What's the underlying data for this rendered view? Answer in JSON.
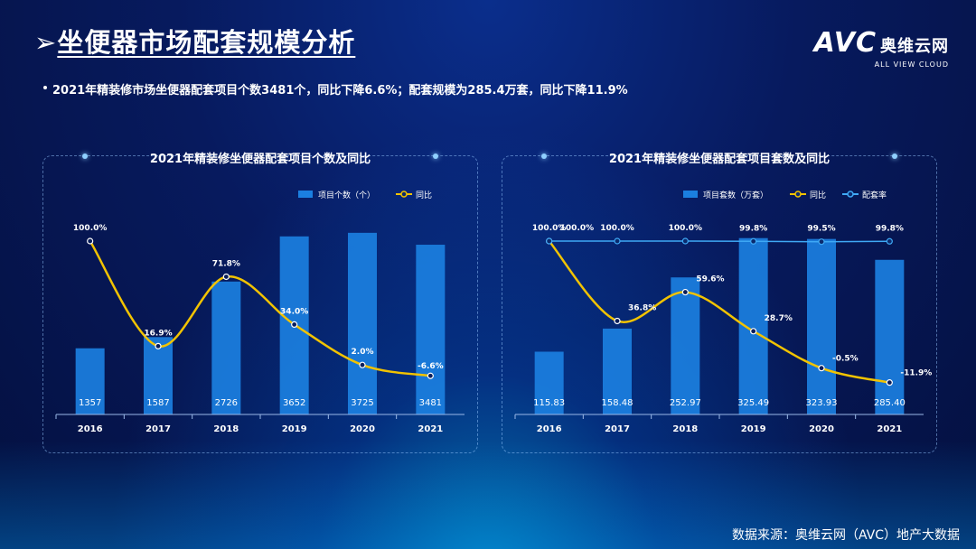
{
  "header": {
    "title": "坐便器市场配套规模分析",
    "title_marker": "➢"
  },
  "brand": {
    "logo_text": "AVC",
    "logo_cn": "奥维云网",
    "tagline": "ALL VIEW CLOUD"
  },
  "summary": "2021年精装修市场坐便器配套项目个数3481个，同比下降6.6%；配套规模为285.4万套，同比下降11.9%",
  "source": "数据来源：奥维云网（AVC）地产大数据",
  "colors": {
    "bar": "#1b7fe0",
    "yoy_line": "#f2c300",
    "rate_line": "#3fa9f5",
    "background": "#071a5e"
  },
  "chart_data": [
    {
      "type": "bar",
      "title": "2021年精装修坐便器配套项目个数及同比",
      "categories": [
        "2016",
        "2017",
        "2018",
        "2019",
        "2020",
        "2021"
      ],
      "series": [
        {
          "name": "项目个数（个）",
          "type": "bar",
          "values": [
            1357,
            1587,
            2726,
            3652,
            3725,
            3481
          ],
          "labels": [
            "1357",
            "1587",
            "2726",
            "3652",
            "3725",
            "3481"
          ]
        },
        {
          "name": "同比",
          "type": "line",
          "values": [
            100.0,
            16.9,
            71.8,
            34.0,
            2.0,
            -6.6
          ],
          "labels": [
            "100.0%",
            "16.9%",
            "71.8%",
            "34.0%",
            "2.0%",
            "-6.6%"
          ]
        }
      ],
      "bar_max": 4000,
      "line_range": [
        -20,
        110
      ],
      "legend_position": "top-right",
      "grid": false
    },
    {
      "type": "bar",
      "title": "2021年精装修坐便器配套项目套数及同比",
      "categories": [
        "2016",
        "2017",
        "2018",
        "2019",
        "2020",
        "2021"
      ],
      "series": [
        {
          "name": "项目套数（万套）",
          "type": "bar",
          "values": [
            115.83,
            158.48,
            252.97,
            325.49,
            323.93,
            285.4
          ],
          "labels": [
            "115.83",
            "158.48",
            "252.97",
            "325.49",
            "323.93",
            "285.40"
          ]
        },
        {
          "name": "同比",
          "type": "line",
          "values": [
            100.0,
            36.8,
            59.6,
            28.7,
            -0.5,
            -11.9
          ],
          "labels": [
            "100.0%",
            "36.8%",
            "59.6%",
            "28.7%",
            "-0.5%",
            "-11.9%"
          ]
        },
        {
          "name": "配套率",
          "type": "line",
          "values": [
            100.0,
            100.0,
            100.0,
            99.8,
            99.5,
            99.8
          ],
          "labels": [
            "100.0%",
            "100.0%",
            "100.0%",
            "99.8%",
            "99.5%",
            "99.8%"
          ]
        }
      ],
      "bar_max": 360,
      "line_range": [
        -20,
        110
      ],
      "legend_position": "top-right",
      "grid": false
    }
  ]
}
